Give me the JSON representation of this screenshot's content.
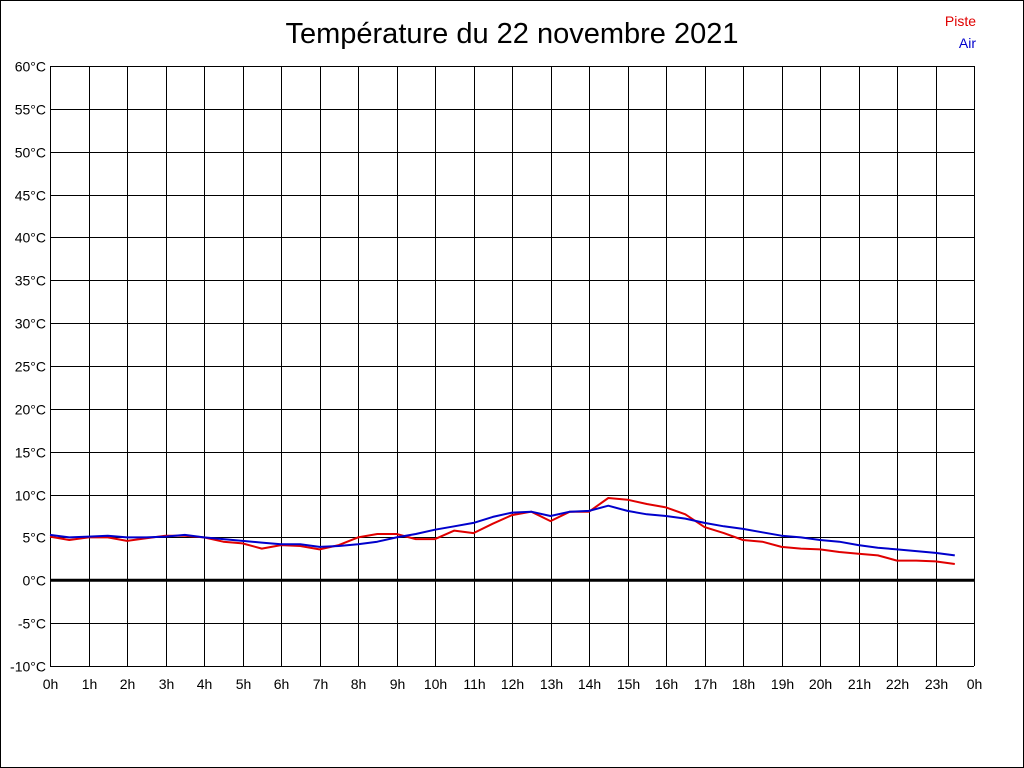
{
  "chart_data": {
    "type": "line",
    "title": "Température du 22 novembre 2021",
    "xlabel": "",
    "ylabel": "",
    "xlim": [
      0,
      24
    ],
    "ylim": [
      -10,
      60
    ],
    "grid": true,
    "legend_position": "top-right",
    "x_tick_labels": [
      "0h",
      "1h",
      "2h",
      "3h",
      "4h",
      "5h",
      "6h",
      "7h",
      "8h",
      "9h",
      "10h",
      "11h",
      "12h",
      "13h",
      "14h",
      "15h",
      "16h",
      "17h",
      "18h",
      "19h",
      "20h",
      "21h",
      "22h",
      "23h",
      "0h"
    ],
    "y_ticks": [
      -10,
      -5,
      0,
      5,
      10,
      15,
      20,
      25,
      30,
      35,
      40,
      45,
      50,
      55,
      60
    ],
    "y_tick_labels": [
      "-10°C",
      "-5°C",
      "0°C",
      "5°C",
      "10°C",
      "15°C",
      "20°C",
      "25°C",
      "30°C",
      "35°C",
      "40°C",
      "45°C",
      "50°C",
      "55°C",
      "60°C"
    ],
    "series": [
      {
        "name": "Piste",
        "color": "#e00000",
        "x": [
          0,
          0.5,
          1,
          1.5,
          2,
          2.5,
          3,
          3.5,
          4,
          4.5,
          5,
          5.5,
          6,
          6.5,
          7,
          7.5,
          8,
          8.5,
          9,
          9.5,
          10,
          10.5,
          11,
          11.5,
          12,
          12.5,
          13,
          13.5,
          14,
          14.5,
          15,
          15.5,
          16,
          16.5,
          17,
          17.5,
          18,
          18.5,
          19,
          19.5,
          20,
          20.5,
          21,
          21.5,
          22,
          22.5,
          23,
          23.5
        ],
        "values": [
          5.1,
          4.7,
          5.0,
          5.0,
          4.6,
          4.9,
          5.2,
          5.2,
          5.0,
          4.5,
          4.3,
          3.7,
          4.1,
          4.0,
          3.6,
          4.1,
          5.0,
          5.4,
          5.4,
          4.8,
          4.8,
          5.8,
          5.5,
          6.6,
          7.6,
          8.0,
          6.9,
          8.0,
          8.0,
          9.6,
          9.4,
          8.9,
          8.5,
          7.7,
          6.2,
          5.5,
          4.7,
          4.5,
          3.9,
          3.7,
          3.6,
          3.3,
          3.1,
          2.9,
          2.3,
          2.3,
          2.2,
          1.9
        ]
      },
      {
        "name": "Air",
        "color": "#0000cc",
        "x": [
          0,
          0.5,
          1,
          1.5,
          2,
          2.5,
          3,
          3.5,
          4,
          4.5,
          5,
          5.5,
          6,
          6.5,
          7,
          7.5,
          8,
          8.5,
          9,
          9.5,
          10,
          10.5,
          11,
          11.5,
          12,
          12.5,
          13,
          13.5,
          14,
          14.5,
          15,
          15.5,
          16,
          16.5,
          17,
          17.5,
          18,
          18.5,
          19,
          19.5,
          20,
          20.5,
          21,
          21.5,
          22,
          22.5,
          23,
          23.5
        ],
        "values": [
          5.3,
          5.0,
          5.1,
          5.2,
          5.0,
          5.0,
          5.1,
          5.3,
          5.0,
          4.8,
          4.6,
          4.4,
          4.2,
          4.2,
          3.9,
          4.0,
          4.2,
          4.5,
          5.0,
          5.4,
          5.9,
          6.3,
          6.7,
          7.4,
          7.9,
          8.0,
          7.5,
          8.0,
          8.1,
          8.7,
          8.1,
          7.7,
          7.5,
          7.2,
          6.7,
          6.3,
          6.0,
          5.6,
          5.2,
          5.0,
          4.7,
          4.5,
          4.1,
          3.8,
          3.6,
          3.4,
          3.2,
          2.9
        ]
      }
    ]
  }
}
